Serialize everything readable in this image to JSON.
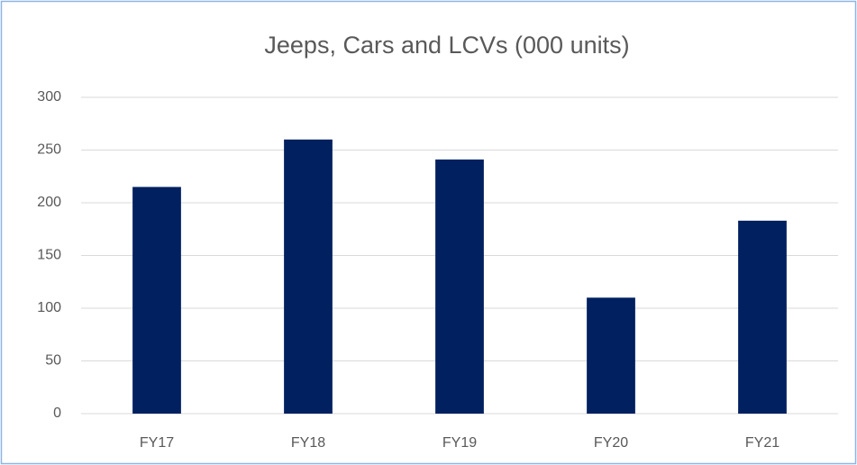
{
  "chart_data": {
    "type": "bar",
    "title": "Jeeps, Cars and LCVs (000 units)",
    "categories": [
      "FY17",
      "FY18",
      "FY19",
      "FY20",
      "FY21"
    ],
    "values": [
      215,
      260,
      241,
      110,
      183
    ],
    "color": "#002060",
    "ylim": [
      0,
      300
    ],
    "yticks": [
      0,
      50,
      100,
      150,
      200,
      250,
      300
    ],
    "grid": true
  }
}
